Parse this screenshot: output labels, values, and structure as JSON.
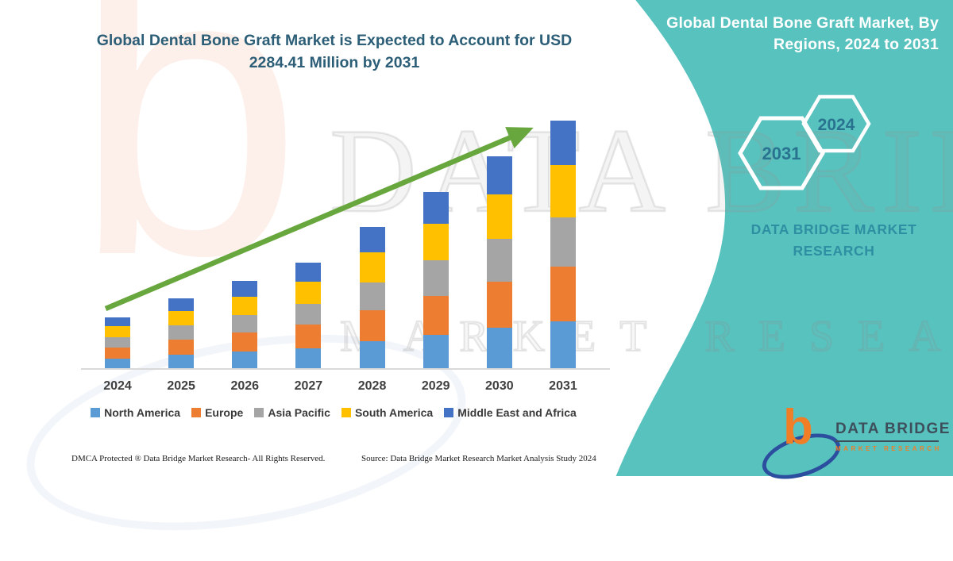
{
  "chart_title": {
    "line1": "Global Dental Bone Graft Market is Expected to Account for USD",
    "line2": "2284.41 Million by 2031"
  },
  "chart_data": {
    "type": "bar",
    "stacked": true,
    "title": "Global Dental Bone Graft Market is Expected to Account for USD 2284.41 Million by 2031",
    "units": "USD Million",
    "categories": [
      "2024",
      "2025",
      "2026",
      "2027",
      "2028",
      "2029",
      "2030",
      "2031"
    ],
    "series": [
      {
        "name": "North America",
        "color": "#5B9BD5",
        "values": [
          89,
          123,
          153,
          185,
          247,
          309,
          371,
          434
        ]
      },
      {
        "name": "Europe",
        "color": "#ED7D31",
        "values": [
          103,
          142,
          177,
          215,
          286,
          358,
          430,
          503
        ]
      },
      {
        "name": "Asia Pacific",
        "color": "#A5A5A5",
        "values": [
          94,
          129,
          161,
          195,
          260,
          325,
          391,
          457
        ]
      },
      {
        "name": "South America",
        "color": "#FFC000",
        "values": [
          99,
          135,
          169,
          205,
          273,
          341,
          411,
          480
        ]
      },
      {
        "name": "Middle East and Africa",
        "color": "#4472C4",
        "values": [
          85,
          116,
          145,
          175,
          234,
          292,
          352,
          410.41
        ]
      }
    ],
    "totals": [
      470,
      645,
      805,
      975,
      1300,
      1625,
      1955,
      2284.41
    ],
    "xlabel": "",
    "ylabel": "",
    "ylim": [
      0,
      2300
    ],
    "grid": false,
    "legend_position": "bottom",
    "trend_arrow_color": "#68A73E"
  },
  "side_panel": {
    "background": "#58C2BE",
    "title_line1": "Global Dental Bone Graft Market, By",
    "title_line2": "Regions, 2024 to 2031",
    "hexagons": [
      {
        "label": "2031"
      },
      {
        "label": "2024"
      }
    ],
    "brand_line1": "DATA BRIDGE MARKET",
    "brand_line2": "RESEARCH"
  },
  "logo": {
    "b_glyph": "b",
    "name": "DATA BRIDGE",
    "subtext": "MARKET RESEARCH",
    "b_color": "#F07E26",
    "swoosh_color": "#2C4E9E",
    "text_color": "#3E4F5C"
  },
  "watermarks": {
    "letter_b": "b",
    "row_top": "DATA BRIDGE",
    "row_bottom": "MARKET RESEARCH"
  },
  "footer": {
    "left": "DMCA Protected ® Data Bridge Market Research-  All Rights Reserved.",
    "source": "Source: Data Bridge Market Research  Market Analysis Study 2024"
  }
}
